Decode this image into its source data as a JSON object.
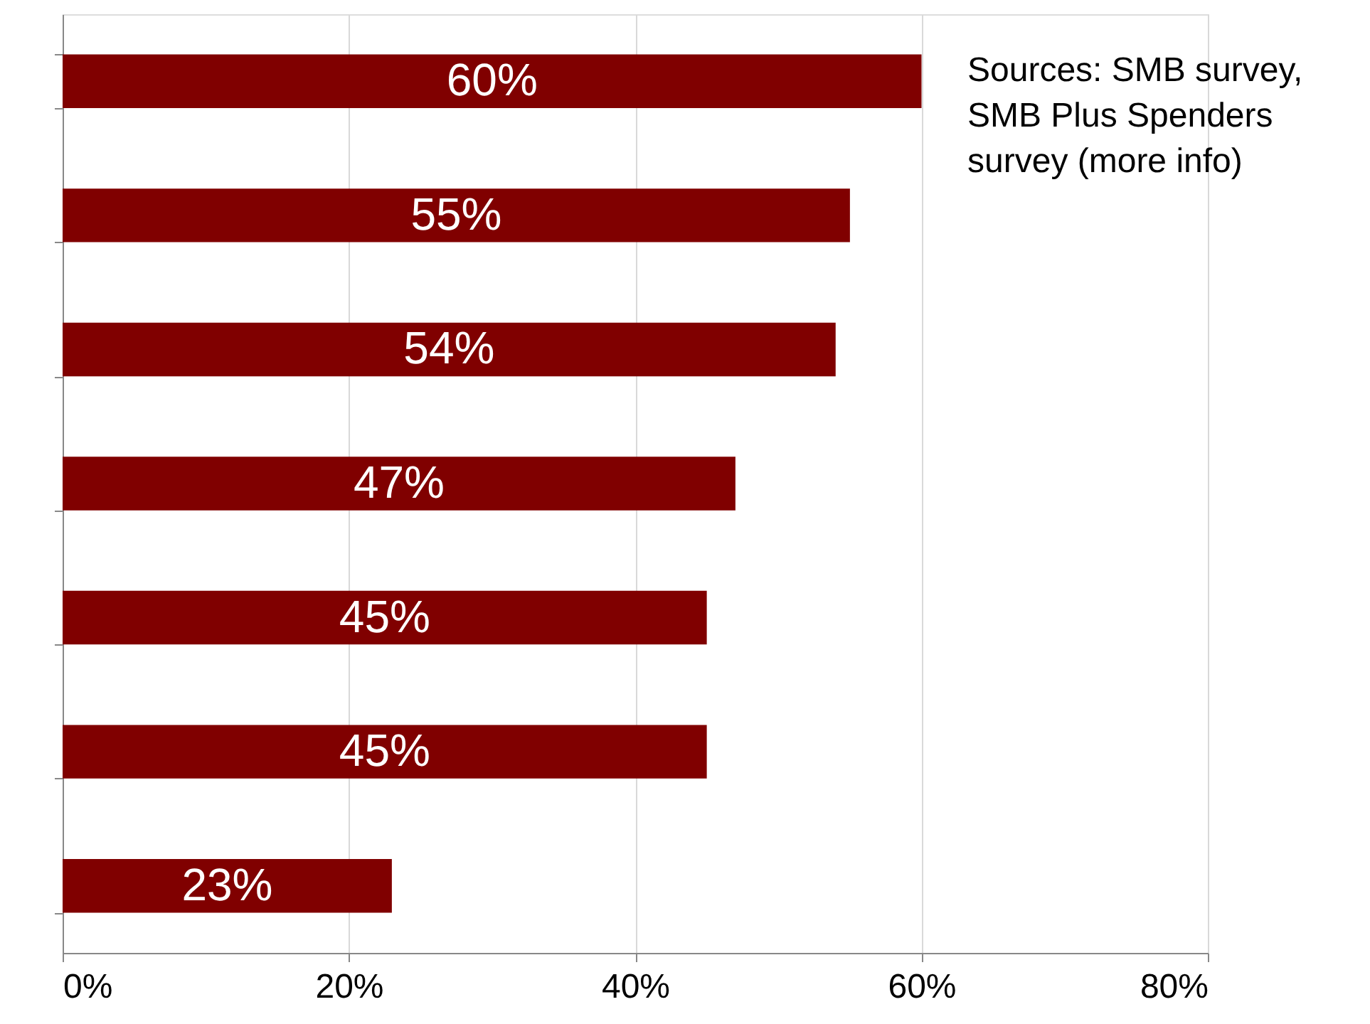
{
  "chart_data": {
    "type": "bar",
    "orientation": "horizontal",
    "categories": [
      null,
      null,
      null,
      null,
      null,
      null,
      null
    ],
    "values": [
      60,
      55,
      54,
      47,
      45,
      45,
      23
    ],
    "color": "#800000",
    "value_labels": [
      "60%",
      "55%",
      "54%",
      "47%",
      "45%",
      "45%",
      "23%"
    ],
    "xlim": [
      0,
      80
    ],
    "xticks": [
      {
        "value": 0,
        "label": "0%"
      },
      {
        "value": 20,
        "label": "20%"
      },
      {
        "value": 40,
        "label": "40%"
      },
      {
        "value": 60,
        "label": "60%"
      },
      {
        "value": 80,
        "label": "80%"
      }
    ],
    "grid": "x",
    "tick_labels": "x",
    "annotations": [
      "Sources: SMB survey, SMB Plus Spenders survey (more info)"
    ]
  }
}
